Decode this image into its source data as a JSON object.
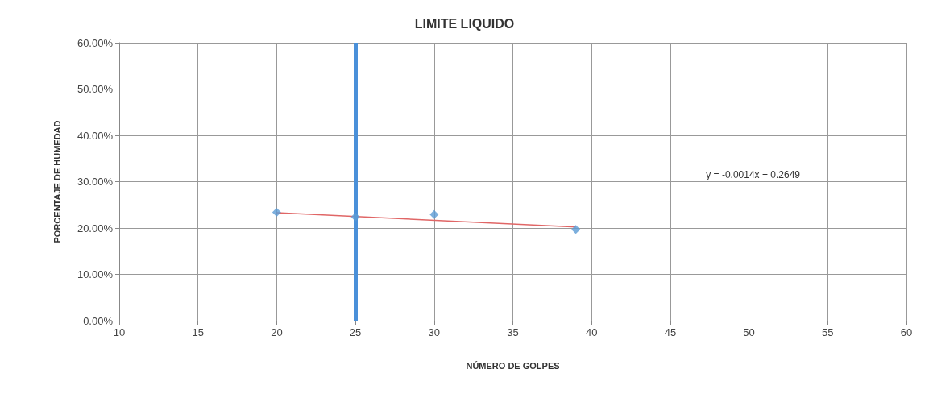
{
  "chart_data": {
    "type": "scatter",
    "title": "LIMITE LIQUIDO",
    "xlabel": "NÚMERO DE GOLPES",
    "ylabel": "PORCENTAJE DE HUMEDAD",
    "series": [
      {
        "color": "#5b9bd5",
        "x": [
          20,
          25,
          30,
          39
        ],
        "values": [
          23.4,
          22.4,
          22.9,
          19.7
        ],
        "marker": "diamond"
      },
      {
        "type": "line",
        "color": "#e06666",
        "x": [
          20,
          39
        ],
        "values": [
          23.3,
          20.2
        ],
        "marker": "none"
      }
    ],
    "xlim": [
      10,
      60
    ],
    "xticks": [
      10,
      15,
      20,
      25,
      30,
      35,
      40,
      45,
      50,
      55,
      60
    ],
    "ylim": [
      0,
      60
    ],
    "yticks": [
      {
        "value": 0,
        "label": "0.00%"
      },
      {
        "value": 10,
        "label": "10.00%"
      },
      {
        "value": 20,
        "label": "20.00%"
      },
      {
        "value": 30,
        "label": "30.00%"
      },
      {
        "value": 40,
        "label": "40.00%"
      },
      {
        "value": 50,
        "label": "50.00%"
      },
      {
        "value": 60,
        "label": "60.00%"
      }
    ],
    "ref_lines": [
      {
        "axis": "x",
        "value": 25,
        "color": "#4a90d9"
      }
    ],
    "annotations": [
      "y = -0.0014x + 0.2649"
    ],
    "grid": true
  }
}
